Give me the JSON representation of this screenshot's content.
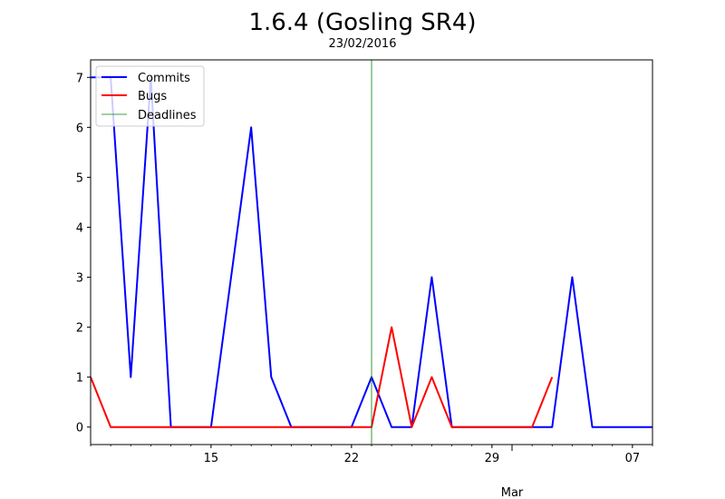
{
  "chart_data": {
    "type": "line",
    "title": "1.6.4 (Gosling SR4)",
    "subtitle": "23/02/2016",
    "xlabel": "",
    "ylabel": "",
    "x_start": "2016-02-09",
    "x_end": "2016-03-08",
    "ylim": [
      -0.35,
      7.35
    ],
    "yticks": [
      0,
      1,
      2,
      3,
      4,
      5,
      6,
      7
    ],
    "xticks_major": [
      {
        "date": "2016-02-15",
        "label": "15"
      },
      {
        "date": "2016-02-22",
        "label": "22"
      },
      {
        "date": "2016-02-29",
        "label": "29"
      },
      {
        "date": "2016-03-07",
        "label": "07"
      }
    ],
    "month_label": {
      "date": "2016-03-01",
      "label": "Mar"
    },
    "grid": false,
    "legend_position": "top-left",
    "series": [
      {
        "name": "Commits",
        "color": "#0000ff",
        "x": [
          "2016-02-09",
          "2016-02-10",
          "2016-02-11",
          "2016-02-12",
          "2016-02-13",
          "2016-02-14",
          "2016-02-15",
          "2016-02-16",
          "2016-02-17",
          "2016-02-18",
          "2016-02-19",
          "2016-02-20",
          "2016-02-21",
          "2016-02-22",
          "2016-02-23",
          "2016-02-24",
          "2016-02-25",
          "2016-02-26",
          "2016-02-27",
          "2016-02-28",
          "2016-02-29",
          "2016-03-01",
          "2016-03-02",
          "2016-03-03",
          "2016-03-04",
          "2016-03-05",
          "2016-03-06",
          "2016-03-07",
          "2016-03-08"
        ],
        "values": [
          7,
          7,
          1,
          7,
          0,
          0,
          0,
          3,
          6,
          1,
          0,
          0,
          0,
          0,
          1,
          0,
          0,
          3,
          0,
          0,
          0,
          0,
          0,
          0,
          3,
          0,
          0,
          0,
          0
        ]
      },
      {
        "name": "Bugs",
        "color": "#ff0000",
        "x": [
          "2016-02-09",
          "2016-02-10",
          "2016-02-11",
          "2016-02-12",
          "2016-02-13",
          "2016-02-14",
          "2016-02-15",
          "2016-02-16",
          "2016-02-17",
          "2016-02-18",
          "2016-02-19",
          "2016-02-20",
          "2016-02-21",
          "2016-02-22",
          "2016-02-23",
          "2016-02-24",
          "2016-02-25",
          "2016-02-26",
          "2016-02-27",
          "2016-02-28",
          "2016-02-29",
          "2016-03-01",
          "2016-03-02",
          "2016-03-03"
        ],
        "values": [
          1,
          0,
          0,
          0,
          0,
          0,
          0,
          0,
          0,
          0,
          0,
          0,
          0,
          0,
          0,
          2,
          0,
          1,
          0,
          0,
          0,
          0,
          0,
          1
        ]
      }
    ],
    "deadlines": {
      "name": "Deadlines",
      "color": "#008000",
      "dates": [
        "2016-02-23"
      ]
    }
  }
}
